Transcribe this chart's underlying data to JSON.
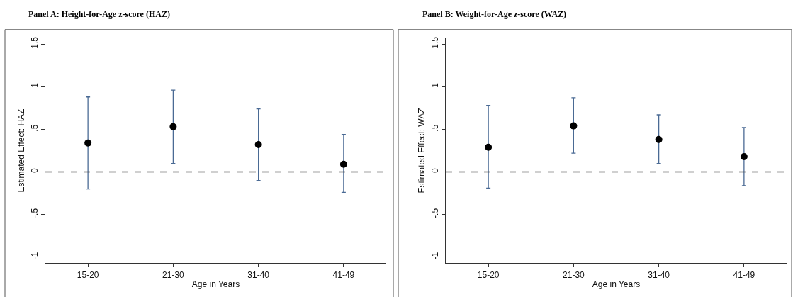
{
  "chart_data": [
    {
      "type": "scatter",
      "title": "Panel A: Height-for-Age z-score (HAZ)",
      "xlabel": "Age in Years",
      "ylabel": "Estimated Effect: HAZ",
      "categories": [
        "15-20",
        "21-30",
        "31-40",
        "41-49"
      ],
      "series": [
        {
          "color": "#000000",
          "values": [
            0.34,
            0.53,
            0.32,
            0.09
          ],
          "errors": [
            [
              -0.2,
              0.88
            ],
            [
              0.1,
              0.96
            ],
            [
              -0.1,
              0.74
            ],
            [
              -0.24,
              0.44
            ]
          ]
        }
      ],
      "ylim": [
        -1.07,
        1.57
      ],
      "yticks": [
        {
          "value": -1,
          "label": "-1"
        },
        {
          "value": -0.5,
          "label": "-.5"
        },
        0,
        {
          "value": 0.5,
          "label": ".5"
        },
        1,
        1.5
      ],
      "ref_lines": [
        {
          "axis": "y",
          "value": 0,
          "label": null,
          "color": "#444444",
          "line_style": "dashed"
        }
      ],
      "marker": "circle"
    },
    {
      "type": "scatter",
      "title": "Panel B: Weight-for-Age z-score (WAZ)",
      "xlabel": "Age in Years",
      "ylabel": "Estimated Effect: WAZ",
      "categories": [
        "15-20",
        "21-30",
        "31-40",
        "41-49"
      ],
      "series": [
        {
          "color": "#000000",
          "values": [
            0.29,
            0.54,
            0.38,
            0.18
          ],
          "errors": [
            [
              -0.19,
              0.78
            ],
            [
              0.22,
              0.87
            ],
            [
              0.1,
              0.67
            ],
            [
              -0.16,
              0.52
            ]
          ]
        }
      ],
      "ylim": [
        -1.07,
        1.57
      ],
      "yticks": [
        {
          "value": -1,
          "label": "-1"
        },
        {
          "value": -0.5,
          "label": "-.5"
        },
        0,
        {
          "value": 0.5,
          "label": ".5"
        },
        1,
        1.5
      ],
      "ref_lines": [
        {
          "axis": "y",
          "value": 0,
          "label": null,
          "color": "#444444",
          "line_style": "dashed"
        }
      ],
      "marker": "circle"
    }
  ]
}
